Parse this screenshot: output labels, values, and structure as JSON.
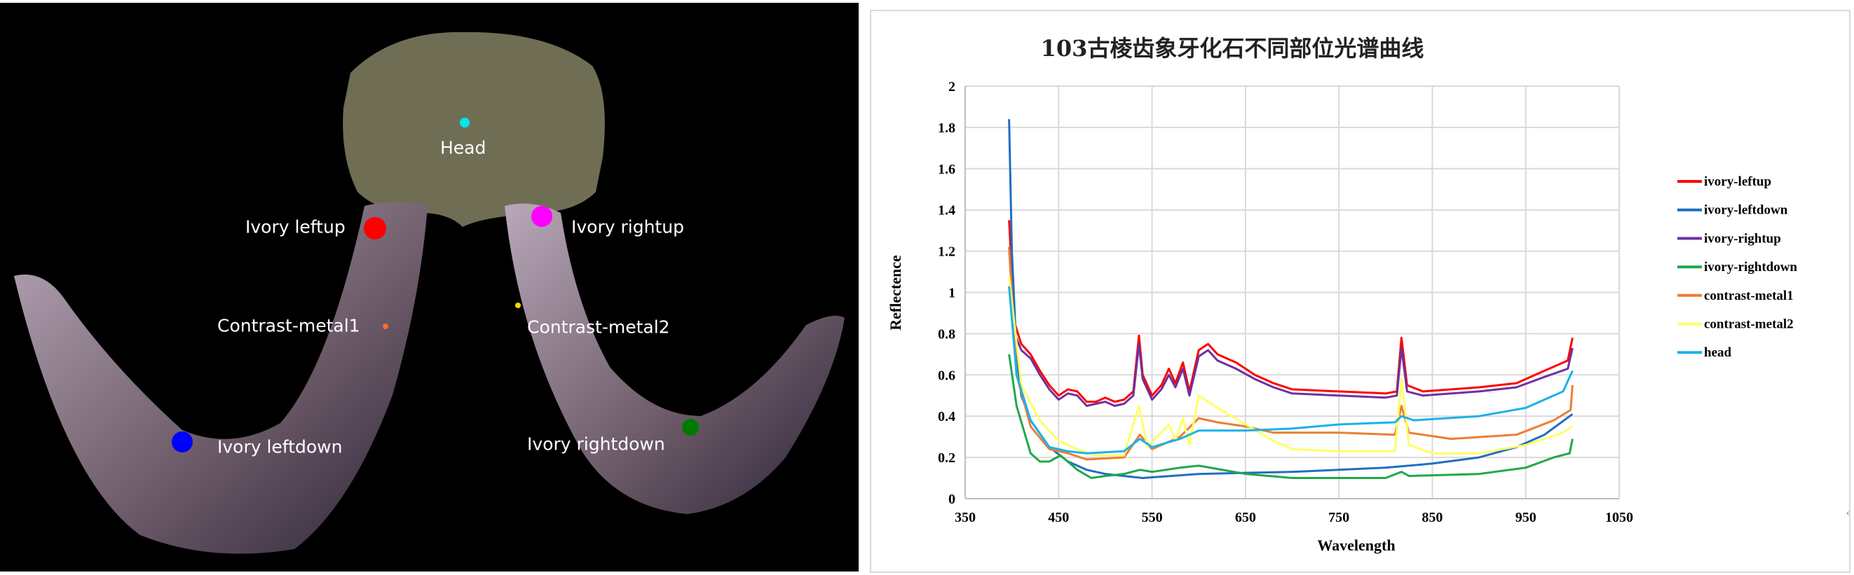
{
  "photo": {
    "labels": {
      "head": "Head",
      "ivory_leftup": "Ivory leftup",
      "ivory_rightup": "Ivory rightup",
      "contrast_metal1": "Contrast-metal1",
      "contrast_metal2": "Contrast-metal2",
      "ivory_leftdown": "Ivory leftdown",
      "ivory_rightdown": "Ivory rightdown"
    },
    "marker_colors": {
      "head": "#00e5ee",
      "ivory_leftup": "#ff0000",
      "ivory_rightup": "#ff00ff",
      "contrast_metal1": "#ff6a3a",
      "contrast_metal2": "#ffd700",
      "ivory_leftdown": "#0000ff",
      "ivory_rightdown": "#007a00"
    }
  },
  "chart_data": {
    "type": "line",
    "title": "103古棱齿象牙化石不同部位光谱曲线",
    "xlabel": "Wavelength",
    "ylabel": "Reflectence",
    "xlim": [
      350,
      1050
    ],
    "ylim": [
      0,
      2
    ],
    "xticks": [
      "350",
      "450",
      "550",
      "650",
      "750",
      "850",
      "950",
      "1050"
    ],
    "yticks": [
      "0",
      "0.2",
      "0.4",
      "0.6",
      "0.8",
      "1",
      "1.2",
      "1.4",
      "1.6",
      "1.8",
      "2"
    ],
    "grid": true,
    "legend_position": "right",
    "series": [
      {
        "name": "ivory-leftup",
        "color": "#ff0000",
        "points": [
          [
            397,
            1.35
          ],
          [
            403,
            0.85
          ],
          [
            410,
            0.75
          ],
          [
            420,
            0.7
          ],
          [
            430,
            0.62
          ],
          [
            440,
            0.55
          ],
          [
            450,
            0.5
          ],
          [
            460,
            0.53
          ],
          [
            470,
            0.52
          ],
          [
            480,
            0.47
          ],
          [
            490,
            0.47
          ],
          [
            500,
            0.49
          ],
          [
            510,
            0.47
          ],
          [
            520,
            0.48
          ],
          [
            530,
            0.52
          ],
          [
            536,
            0.79
          ],
          [
            540,
            0.6
          ],
          [
            550,
            0.5
          ],
          [
            560,
            0.55
          ],
          [
            568,
            0.63
          ],
          [
            575,
            0.56
          ],
          [
            583,
            0.66
          ],
          [
            590,
            0.52
          ],
          [
            600,
            0.72
          ],
          [
            610,
            0.75
          ],
          [
            620,
            0.7
          ],
          [
            640,
            0.66
          ],
          [
            660,
            0.6
          ],
          [
            680,
            0.56
          ],
          [
            700,
            0.53
          ],
          [
            750,
            0.52
          ],
          [
            800,
            0.51
          ],
          [
            812,
            0.52
          ],
          [
            817,
            0.78
          ],
          [
            823,
            0.55
          ],
          [
            840,
            0.52
          ],
          [
            900,
            0.54
          ],
          [
            940,
            0.56
          ],
          [
            970,
            0.62
          ],
          [
            995,
            0.67
          ],
          [
            1000,
            0.78
          ]
        ]
      },
      {
        "name": "ivory-leftdown",
        "color": "#1f6fc0",
        "points": [
          [
            397,
            1.84
          ],
          [
            400,
            1.2
          ],
          [
            405,
            0.7
          ],
          [
            410,
            0.5
          ],
          [
            420,
            0.38
          ],
          [
            440,
            0.25
          ],
          [
            460,
            0.18
          ],
          [
            480,
            0.14
          ],
          [
            500,
            0.12
          ],
          [
            540,
            0.1
          ],
          [
            600,
            0.12
          ],
          [
            700,
            0.13
          ],
          [
            750,
            0.14
          ],
          [
            800,
            0.15
          ],
          [
            850,
            0.17
          ],
          [
            900,
            0.2
          ],
          [
            940,
            0.25
          ],
          [
            970,
            0.31
          ],
          [
            1000,
            0.41
          ]
        ]
      },
      {
        "name": "ivory-rightup",
        "color": "#7030a0",
        "points": [
          [
            397,
            1.22
          ],
          [
            403,
            0.8
          ],
          [
            410,
            0.72
          ],
          [
            420,
            0.68
          ],
          [
            430,
            0.6
          ],
          [
            440,
            0.53
          ],
          [
            450,
            0.48
          ],
          [
            460,
            0.51
          ],
          [
            470,
            0.5
          ],
          [
            480,
            0.45
          ],
          [
            490,
            0.46
          ],
          [
            500,
            0.47
          ],
          [
            510,
            0.45
          ],
          [
            520,
            0.46
          ],
          [
            530,
            0.5
          ],
          [
            536,
            0.75
          ],
          [
            540,
            0.58
          ],
          [
            550,
            0.48
          ],
          [
            560,
            0.53
          ],
          [
            568,
            0.6
          ],
          [
            575,
            0.54
          ],
          [
            583,
            0.63
          ],
          [
            590,
            0.5
          ],
          [
            600,
            0.69
          ],
          [
            610,
            0.72
          ],
          [
            620,
            0.67
          ],
          [
            640,
            0.63
          ],
          [
            660,
            0.58
          ],
          [
            680,
            0.54
          ],
          [
            700,
            0.51
          ],
          [
            750,
            0.5
          ],
          [
            800,
            0.49
          ],
          [
            812,
            0.5
          ],
          [
            817,
            0.73
          ],
          [
            823,
            0.52
          ],
          [
            840,
            0.5
          ],
          [
            900,
            0.52
          ],
          [
            940,
            0.54
          ],
          [
            970,
            0.59
          ],
          [
            995,
            0.63
          ],
          [
            1000,
            0.73
          ]
        ]
      },
      {
        "name": "ivory-rightdown",
        "color": "#1fa84a",
        "points": [
          [
            397,
            0.7
          ],
          [
            405,
            0.45
          ],
          [
            420,
            0.22
          ],
          [
            430,
            0.18
          ],
          [
            440,
            0.18
          ],
          [
            452,
            0.21
          ],
          [
            470,
            0.14
          ],
          [
            485,
            0.1
          ],
          [
            500,
            0.11
          ],
          [
            520,
            0.12
          ],
          [
            537,
            0.14
          ],
          [
            550,
            0.13
          ],
          [
            580,
            0.15
          ],
          [
            600,
            0.16
          ],
          [
            650,
            0.12
          ],
          [
            700,
            0.1
          ],
          [
            800,
            0.1
          ],
          [
            817,
            0.13
          ],
          [
            825,
            0.11
          ],
          [
            900,
            0.12
          ],
          [
            950,
            0.15
          ],
          [
            980,
            0.2
          ],
          [
            997,
            0.22
          ],
          [
            1000,
            0.29
          ]
        ]
      },
      {
        "name": "contrast-metal1",
        "color": "#ed7d31",
        "points": [
          [
            397,
            1.22
          ],
          [
            405,
            0.6
          ],
          [
            420,
            0.35
          ],
          [
            440,
            0.24
          ],
          [
            460,
            0.22
          ],
          [
            480,
            0.19
          ],
          [
            520,
            0.2
          ],
          [
            537,
            0.31
          ],
          [
            550,
            0.24
          ],
          [
            580,
            0.3
          ],
          [
            600,
            0.39
          ],
          [
            620,
            0.37
          ],
          [
            650,
            0.35
          ],
          [
            680,
            0.32
          ],
          [
            750,
            0.32
          ],
          [
            810,
            0.31
          ],
          [
            817,
            0.45
          ],
          [
            825,
            0.32
          ],
          [
            870,
            0.29
          ],
          [
            940,
            0.31
          ],
          [
            980,
            0.38
          ],
          [
            998,
            0.43
          ],
          [
            1000,
            0.55
          ]
        ]
      },
      {
        "name": "contrast-metal2",
        "color": "#ffff66",
        "points": [
          [
            397,
            1.08
          ],
          [
            410,
            0.55
          ],
          [
            430,
            0.38
          ],
          [
            450,
            0.28
          ],
          [
            470,
            0.24
          ],
          [
            490,
            0.21
          ],
          [
            520,
            0.21
          ],
          [
            536,
            0.45
          ],
          [
            545,
            0.25
          ],
          [
            568,
            0.36
          ],
          [
            575,
            0.28
          ],
          [
            583,
            0.39
          ],
          [
            590,
            0.26
          ],
          [
            600,
            0.5
          ],
          [
            620,
            0.44
          ],
          [
            650,
            0.36
          ],
          [
            680,
            0.28
          ],
          [
            700,
            0.24
          ],
          [
            750,
            0.23
          ],
          [
            810,
            0.23
          ],
          [
            817,
            0.58
          ],
          [
            825,
            0.26
          ],
          [
            850,
            0.22
          ],
          [
            900,
            0.22
          ],
          [
            950,
            0.26
          ],
          [
            990,
            0.32
          ],
          [
            1000,
            0.35
          ]
        ]
      },
      {
        "name": "head",
        "color": "#1ab2e8",
        "points": [
          [
            397,
            1.03
          ],
          [
            405,
            0.6
          ],
          [
            420,
            0.38
          ],
          [
            440,
            0.25
          ],
          [
            460,
            0.23
          ],
          [
            480,
            0.22
          ],
          [
            520,
            0.23
          ],
          [
            537,
            0.29
          ],
          [
            550,
            0.25
          ],
          [
            580,
            0.29
          ],
          [
            600,
            0.33
          ],
          [
            650,
            0.33
          ],
          [
            700,
            0.34
          ],
          [
            750,
            0.36
          ],
          [
            810,
            0.37
          ],
          [
            817,
            0.4
          ],
          [
            830,
            0.38
          ],
          [
            900,
            0.4
          ],
          [
            950,
            0.44
          ],
          [
            990,
            0.52
          ],
          [
            1000,
            0.62
          ]
        ]
      }
    ]
  }
}
